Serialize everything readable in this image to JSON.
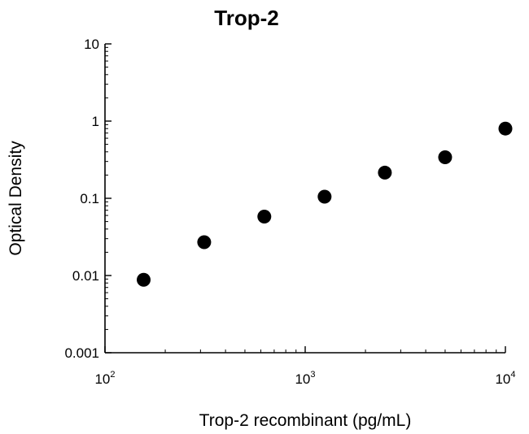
{
  "chart_data": {
    "type": "scatter",
    "title": "Trop-2",
    "xlabel": "Trop-2 recombinant (pg/mL)",
    "ylabel": "Optical Density",
    "x_scale": "log",
    "y_scale": "log",
    "xlim": [
      100,
      10000
    ],
    "ylim": [
      0.001,
      10
    ],
    "x_ticks": [
      {
        "value": 100,
        "base": "10",
        "exp": "2"
      },
      {
        "value": 1000,
        "base": "10",
        "exp": "3"
      },
      {
        "value": 10000,
        "base": "10",
        "exp": "4"
      }
    ],
    "y_ticks": [
      {
        "value": 10,
        "label": "10"
      },
      {
        "value": 1,
        "label": "1"
      },
      {
        "value": 0.1,
        "label": "0.1"
      },
      {
        "value": 0.01,
        "label": "0.01"
      },
      {
        "value": 0.001,
        "label": "0.001"
      }
    ],
    "grid": false,
    "marker_color": "#000000",
    "points": [
      {
        "x": 156,
        "y": 0.0088
      },
      {
        "x": 313,
        "y": 0.027
      },
      {
        "x": 625,
        "y": 0.058
      },
      {
        "x": 1250,
        "y": 0.105
      },
      {
        "x": 2500,
        "y": 0.215
      },
      {
        "x": 5000,
        "y": 0.34
      },
      {
        "x": 10000,
        "y": 0.8
      }
    ]
  }
}
